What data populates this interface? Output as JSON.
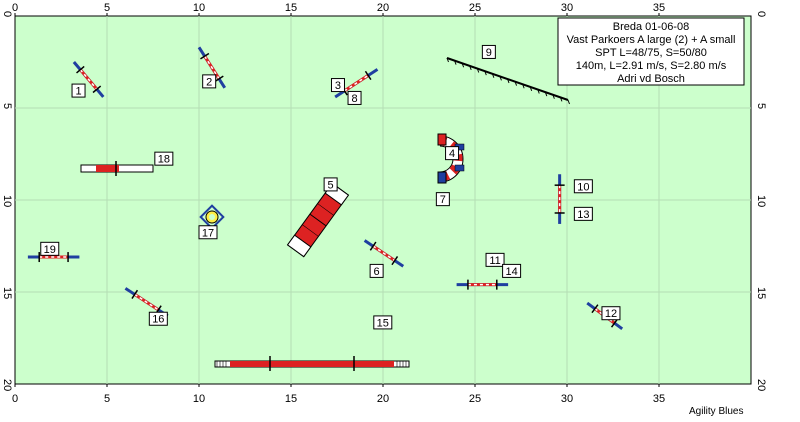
{
  "course": {
    "x_ticks": [
      "0",
      "5",
      "10",
      "15",
      "20",
      "25",
      "30",
      "35"
    ],
    "y_ticks": [
      "0",
      "5",
      "10",
      "15",
      "20"
    ],
    "info_lines": [
      "Breda  01-06-08",
      "Vast Parkoers A large (2) + A small",
      "SPT L=48/75, S=50/80",
      "140m, L=2.91 m/s, S=2.80 m/s",
      "Adri vd Bosch"
    ],
    "numbers": [
      {
        "id": "1",
        "x": 3.1,
        "y": 3.7
      },
      {
        "id": "2",
        "x": 10.2,
        "y": 3.2
      },
      {
        "id": "3",
        "x": 17.2,
        "y": 3.4
      },
      {
        "id": "8",
        "x": 18.1,
        "y": 4.1
      },
      {
        "id": "9",
        "x": 25.4,
        "y": 1.6
      },
      {
        "id": "4",
        "x": 23.4,
        "y": 7.1
      },
      {
        "id": "18",
        "x": 7.6,
        "y": 7.4
      },
      {
        "id": "10",
        "x": 30.4,
        "y": 8.9
      },
      {
        "id": "5",
        "x": 16.8,
        "y": 8.8
      },
      {
        "id": "7",
        "x": 22.9,
        "y": 9.6
      },
      {
        "id": "13",
        "x": 30.4,
        "y": 10.4
      },
      {
        "id": "17",
        "x": 10.0,
        "y": 11.4
      },
      {
        "id": "19",
        "x": 1.4,
        "y": 12.3
      },
      {
        "id": "6",
        "x": 19.3,
        "y": 13.5
      },
      {
        "id": "11",
        "x": 25.6,
        "y": 12.9
      },
      {
        "id": "14",
        "x": 26.5,
        "y": 13.5
      },
      {
        "id": "15",
        "x": 19.5,
        "y": 16.3
      },
      {
        "id": "16",
        "x": 7.3,
        "y": 16.1
      },
      {
        "id": "12",
        "x": 31.9,
        "y": 15.8
      }
    ],
    "jumps": [
      {
        "x1": 3.2,
        "y1": 2.5,
        "x2": 4.8,
        "y2": 4.4
      },
      {
        "x1": 10.0,
        "y1": 1.7,
        "x2": 11.4,
        "y2": 3.9
      },
      {
        "x1": 17.4,
        "y1": 4.4,
        "x2": 19.7,
        "y2": 2.9
      },
      {
        "x1": 19.0,
        "y1": 12.2,
        "x2": 21.1,
        "y2": 13.6
      },
      {
        "x1": 29.6,
        "y1": 8.6,
        "x2": 29.6,
        "y2": 11.3
      },
      {
        "x1": 24.0,
        "y1": 14.6,
        "x2": 26.8,
        "y2": 14.6
      },
      {
        "x1": 31.1,
        "y1": 15.6,
        "x2": 33.0,
        "y2": 17.0
      },
      {
        "x1": 6.0,
        "y1": 14.8,
        "x2": 8.3,
        "y2": 16.3
      },
      {
        "x1": 0.7,
        "y1": 13.1,
        "x2": 3.5,
        "y2": 13.1
      }
    ],
    "colors": {
      "field": "#ccffcc",
      "grid": "#b4ddb4",
      "bar": "#1f3fa0",
      "stripe": "#dd2222",
      "tunnel_blue": "#1f3fa0",
      "tunnel_red": "#dd2222"
    }
  },
  "footer": "Agility Blues"
}
